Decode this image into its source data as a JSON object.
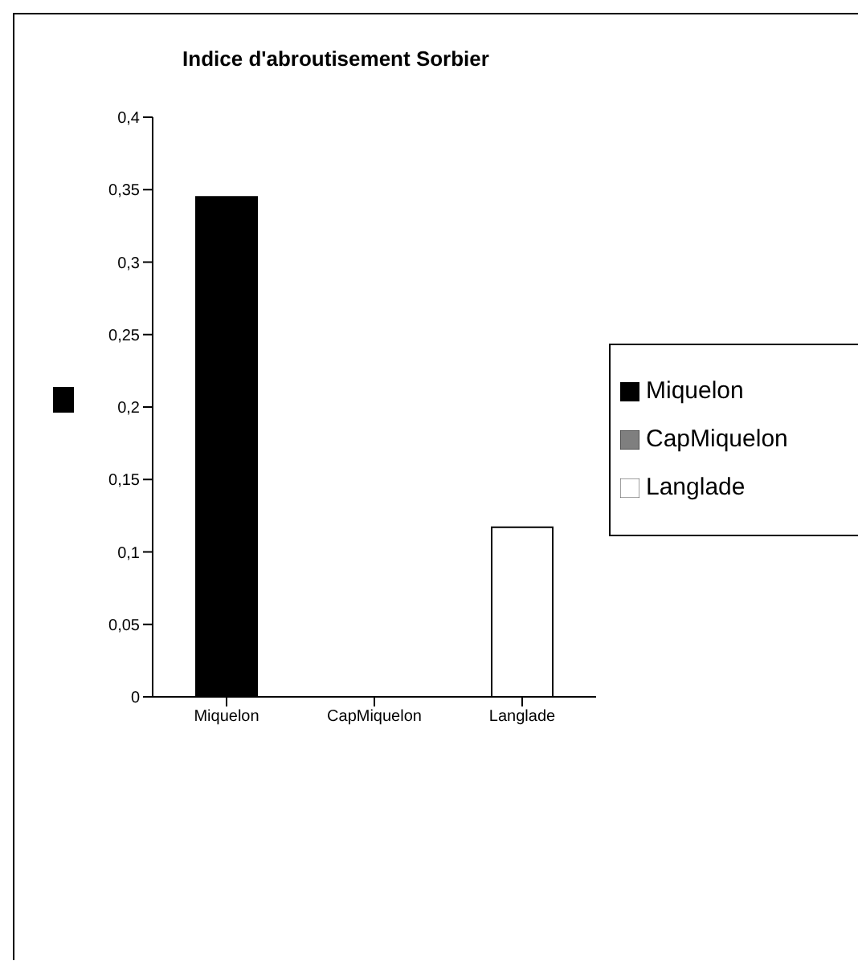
{
  "chart_data": {
    "type": "bar",
    "title": "Indice d'abroutisement Sorbier",
    "categories": [
      "Miquelon",
      "CapMiquelon",
      "Langlade"
    ],
    "series": [
      {
        "name": "Miquelon",
        "color": "#000000",
        "values": [
          0.345,
          null,
          null
        ]
      },
      {
        "name": "CapMiquelon",
        "color": "#7f7f7f",
        "values": [
          null,
          0,
          null
        ]
      },
      {
        "name": "Langlade",
        "color": "#ffffff",
        "values": [
          null,
          null,
          0.117
        ]
      }
    ],
    "ylim": [
      0,
      0.4
    ],
    "yticks": [
      0,
      {
        "value": 0.05,
        "label": "0,05"
      },
      {
        "value": 0.1,
        "label": "0,1"
      },
      {
        "value": 0.15,
        "label": "0,15"
      },
      {
        "value": 0.2,
        "label": "0,2"
      },
      {
        "value": 0.25,
        "label": "0,25"
      },
      {
        "value": 0.3,
        "label": "0,3"
      },
      {
        "value": 0.35,
        "label": "0,35"
      },
      {
        "value": 0.4,
        "label": "0,4"
      }
    ],
    "legend": "right"
  }
}
